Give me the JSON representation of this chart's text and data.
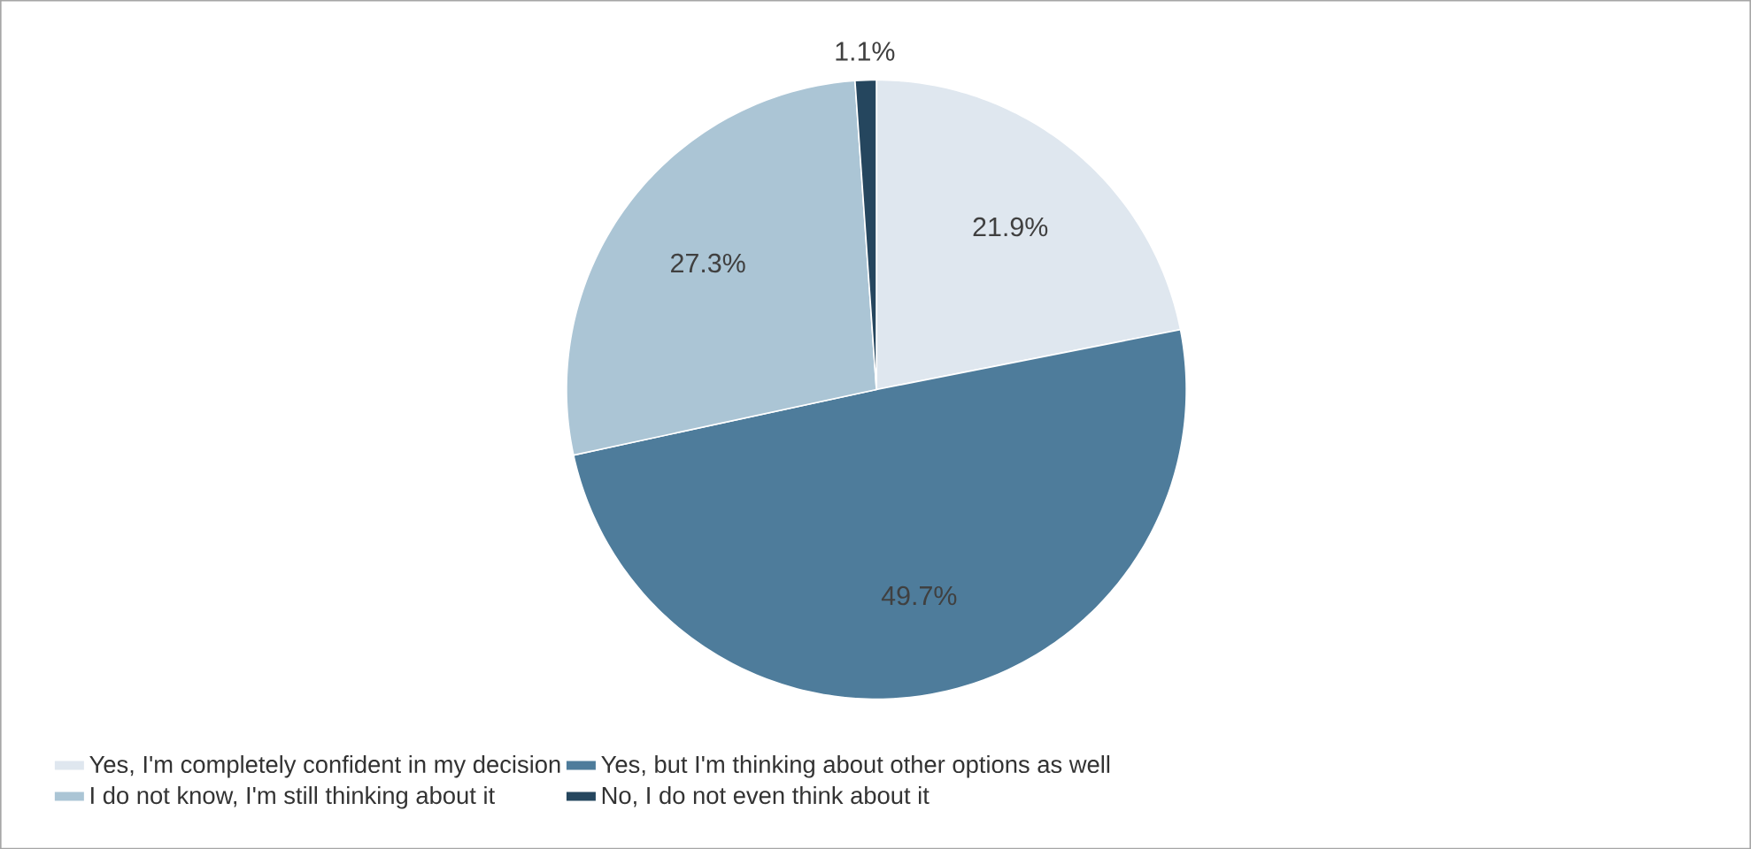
{
  "chart_data": {
    "type": "pie",
    "categories": [
      "Yes, I'm completely confident in my decision",
      "Yes, but I'm thinking about other options as well",
      "I do not know, I'm still thinking about it",
      "No, I do not even think about it"
    ],
    "values": [
      21.9,
      49.7,
      27.3,
      1.1
    ],
    "colors": [
      "#dfe7ef",
      "#4e7c9b",
      "#abc5d5",
      "#25465e"
    ],
    "value_labels": [
      "21.9%",
      "49.7%",
      "27.3%",
      "1.1%"
    ],
    "legend": "bottom"
  }
}
